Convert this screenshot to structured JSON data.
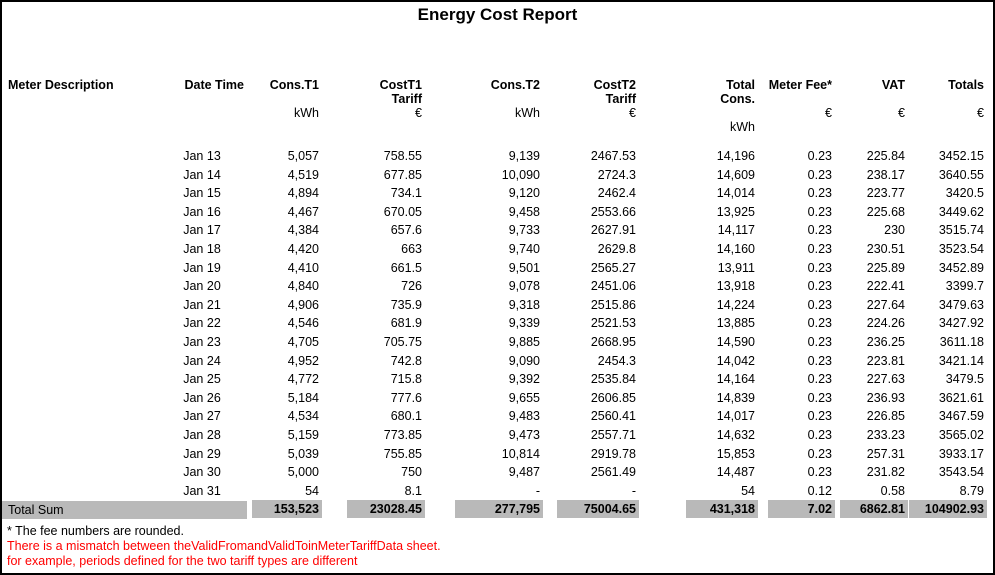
{
  "report": {
    "title": "Energy Cost Report",
    "columns": [
      {
        "id": "meter-description",
        "label": "Meter Description",
        "label2": "",
        "unit": "",
        "unit2": ""
      },
      {
        "id": "date-time",
        "label": "Date Time",
        "label2": "",
        "unit": "",
        "unit2": ""
      },
      {
        "id": "cons-t1",
        "label": "Cons.T1",
        "label2": "",
        "unit": "kWh",
        "unit2": ""
      },
      {
        "id": "cost-t1-tariff",
        "label": "CostT1",
        "label2": "Tariff",
        "unit": "€",
        "unit2": ""
      },
      {
        "id": "cons-t2",
        "label": "Cons.T2",
        "label2": "",
        "unit": "kWh",
        "unit2": ""
      },
      {
        "id": "cost-t2-tariff",
        "label": "CostT2",
        "label2": "Tariff",
        "unit": "€",
        "unit2": ""
      },
      {
        "id": "total-cons",
        "label": "Total",
        "label2": "Cons.",
        "unit": "",
        "unit2": "kWh"
      },
      {
        "id": "meter-fee",
        "label": "Meter Fee*",
        "label2": "",
        "unit": "€",
        "unit2": ""
      },
      {
        "id": "vat",
        "label": "VAT",
        "label2": "",
        "unit": "€",
        "unit2": ""
      },
      {
        "id": "totals",
        "label": "Totals",
        "label2": "",
        "unit": "€",
        "unit2": ""
      }
    ],
    "rows": [
      [
        "",
        "Jan 13",
        "5,057",
        "758.55",
        "9,139",
        "2467.53",
        "14,196",
        "0.23",
        "225.84",
        "3452.15"
      ],
      [
        "",
        "Jan 14",
        "4,519",
        "677.85",
        "10,090",
        "2724.3",
        "14,609",
        "0.23",
        "238.17",
        "3640.55"
      ],
      [
        "",
        "Jan 15",
        "4,894",
        "734.1",
        "9,120",
        "2462.4",
        "14,014",
        "0.23",
        "223.77",
        "3420.5"
      ],
      [
        "",
        "Jan 16",
        "4,467",
        "670.05",
        "9,458",
        "2553.66",
        "13,925",
        "0.23",
        "225.68",
        "3449.62"
      ],
      [
        "",
        "Jan 17",
        "4,384",
        "657.6",
        "9,733",
        "2627.91",
        "14,117",
        "0.23",
        "230",
        "3515.74"
      ],
      [
        "",
        "Jan 18",
        "4,420",
        "663",
        "9,740",
        "2629.8",
        "14,160",
        "0.23",
        "230.51",
        "3523.54"
      ],
      [
        "",
        "Jan 19",
        "4,410",
        "661.5",
        "9,501",
        "2565.27",
        "13,911",
        "0.23",
        "225.89",
        "3452.89"
      ],
      [
        "",
        "Jan 20",
        "4,840",
        "726",
        "9,078",
        "2451.06",
        "13,918",
        "0.23",
        "222.41",
        "3399.7"
      ],
      [
        "",
        "Jan 21",
        "4,906",
        "735.9",
        "9,318",
        "2515.86",
        "14,224",
        "0.23",
        "227.64",
        "3479.63"
      ],
      [
        "",
        "Jan 22",
        "4,546",
        "681.9",
        "9,339",
        "2521.53",
        "13,885",
        "0.23",
        "224.26",
        "3427.92"
      ],
      [
        "",
        "Jan 23",
        "4,705",
        "705.75",
        "9,885",
        "2668.95",
        "14,590",
        "0.23",
        "236.25",
        "3611.18"
      ],
      [
        "",
        "Jan 24",
        "4,952",
        "742.8",
        "9,090",
        "2454.3",
        "14,042",
        "0.23",
        "223.81",
        "3421.14"
      ],
      [
        "",
        "Jan 25",
        "4,772",
        "715.8",
        "9,392",
        "2535.84",
        "14,164",
        "0.23",
        "227.63",
        "3479.5"
      ],
      [
        "",
        "Jan 26",
        "5,184",
        "777.6",
        "9,655",
        "2606.85",
        "14,839",
        "0.23",
        "236.93",
        "3621.61"
      ],
      [
        "",
        "Jan 27",
        "4,534",
        "680.1",
        "9,483",
        "2560.41",
        "14,017",
        "0.23",
        "226.85",
        "3467.59"
      ],
      [
        "",
        "Jan 28",
        "5,159",
        "773.85",
        "9,473",
        "2557.71",
        "14,632",
        "0.23",
        "233.23",
        "3565.02"
      ],
      [
        "",
        "Jan 29",
        "5,039",
        "755.85",
        "10,814",
        "2919.78",
        "15,853",
        "0.23",
        "257.31",
        "3933.17"
      ],
      [
        "",
        "Jan 30",
        "5,000",
        "750",
        "9,487",
        "2561.49",
        "14,487",
        "0.23",
        "231.82",
        "3543.54"
      ],
      [
        "",
        "Jan 31",
        "54",
        "8.1",
        "-",
        "-",
        "54",
        "0.12",
        "0.58",
        "8.79"
      ]
    ],
    "total_row": {
      "label": "Total Sum",
      "values": [
        "153,523",
        "23028.45",
        "277,795",
        "75004.65",
        "431,318",
        "7.02",
        "6862.81",
        "104902.93"
      ]
    },
    "footnotes": {
      "fee_note": "* The fee numbers are rounded.",
      "warning_line1": "There is a mismatch between theValidFromandValidToinMeterTariffData sheet.",
      "warning_line2": "for example, periods defined for the two tariff types are different"
    },
    "colors": {
      "total_row_bg": "#b9b9b9",
      "warning_text": "#ff0000",
      "text": "#000000"
    }
  }
}
